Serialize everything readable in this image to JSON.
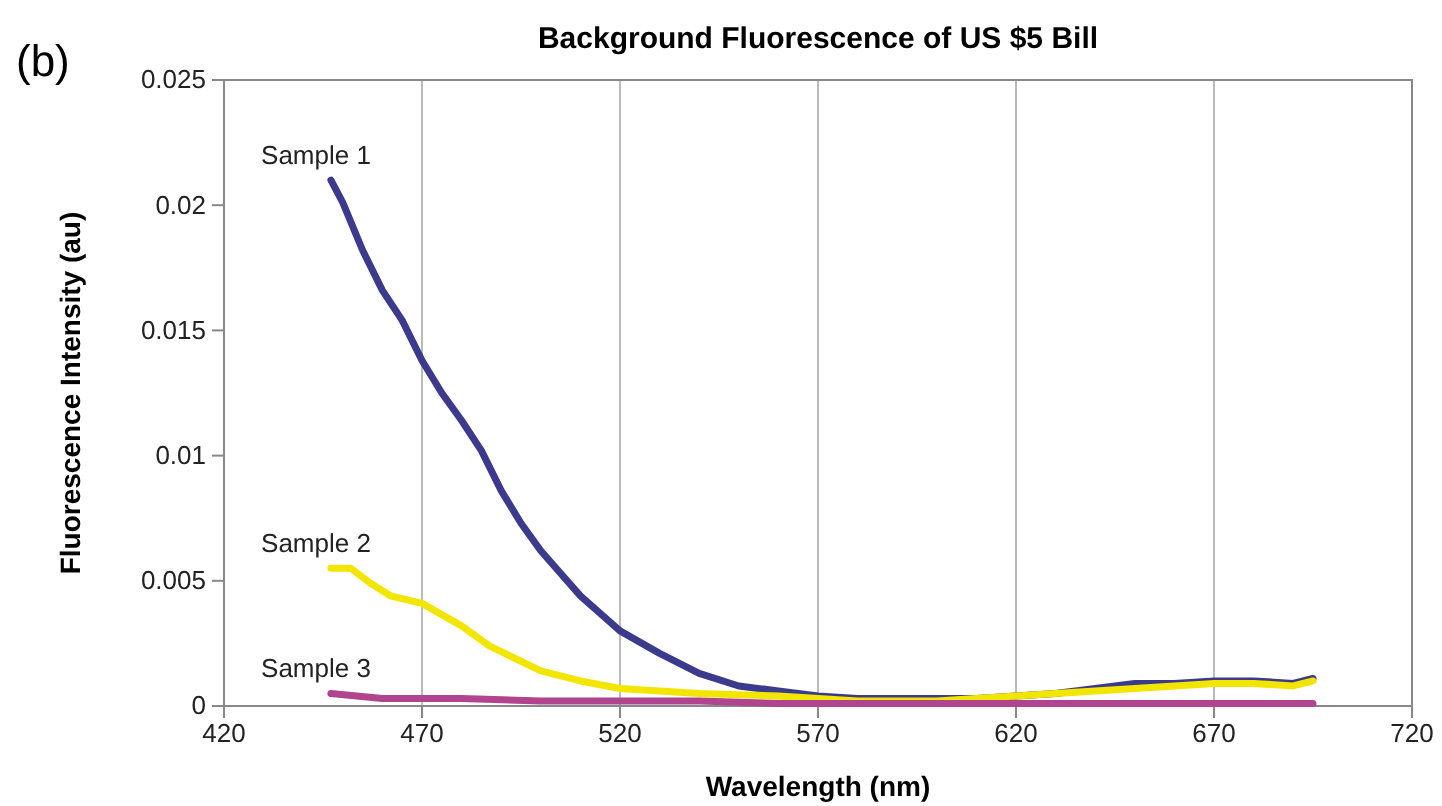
{
  "chart_data": {
    "type": "line",
    "title": "Background Fluorescence of US $5 Bill",
    "xlabel": "Wavelength (nm)",
    "ylabel": "Fluorescence Intensity (au)",
    "annotations": [
      "(b)"
    ],
    "xlim": [
      420,
      720
    ],
    "xticks": [
      420,
      470,
      520,
      570,
      620,
      670,
      720
    ],
    "ylim": [
      0,
      0.025
    ],
    "yticks": [
      0,
      0.005,
      0.01,
      0.015,
      0.02,
      0.025
    ],
    "grid": "x",
    "series": [
      {
        "name": "Sample 1",
        "color": "#3b3a8c",
        "x": [
          447,
          450,
          455,
          460,
          465,
          470,
          475,
          480,
          485,
          490,
          495,
          500,
          510,
          520,
          530,
          540,
          550,
          560,
          570,
          580,
          590,
          600,
          610,
          620,
          630,
          640,
          650,
          660,
          670,
          680,
          690,
          695
        ],
        "values": [
          0.021,
          0.0201,
          0.0182,
          0.0166,
          0.0154,
          0.0138,
          0.0125,
          0.0114,
          0.0102,
          0.0086,
          0.0073,
          0.0062,
          0.0044,
          0.003,
          0.0021,
          0.0013,
          0.0008,
          0.0006,
          0.0004,
          0.0003,
          0.0003,
          0.0003,
          0.0003,
          0.0004,
          0.0005,
          0.0007,
          0.0009,
          0.0009,
          0.001,
          0.001,
          0.0009,
          0.0011
        ]
      },
      {
        "name": "Sample 2",
        "color": "#f2e600",
        "x": [
          447,
          452,
          457,
          462,
          470,
          480,
          487,
          500,
          510,
          520,
          540,
          560,
          580,
          600,
          620,
          630,
          640,
          650,
          660,
          670,
          680,
          690,
          695
        ],
        "values": [
          0.0055,
          0.0055,
          0.0049,
          0.0044,
          0.0041,
          0.0032,
          0.0024,
          0.0014,
          0.001,
          0.0007,
          0.0005,
          0.0004,
          0.0002,
          0.0002,
          0.0004,
          0.0005,
          0.0006,
          0.0007,
          0.0008,
          0.0009,
          0.0009,
          0.0008,
          0.001
        ]
      },
      {
        "name": "Sample 3",
        "color": "#b0448e",
        "x": [
          447,
          460,
          480,
          500,
          520,
          540,
          560,
          580,
          600,
          620,
          640,
          660,
          680,
          695
        ],
        "values": [
          0.0005,
          0.0003,
          0.0003,
          0.0002,
          0.0002,
          0.0002,
          0.0001,
          0.0001,
          0.0001,
          0.0001,
          0.0001,
          0.0001,
          0.0001,
          0.0001
        ]
      }
    ]
  }
}
